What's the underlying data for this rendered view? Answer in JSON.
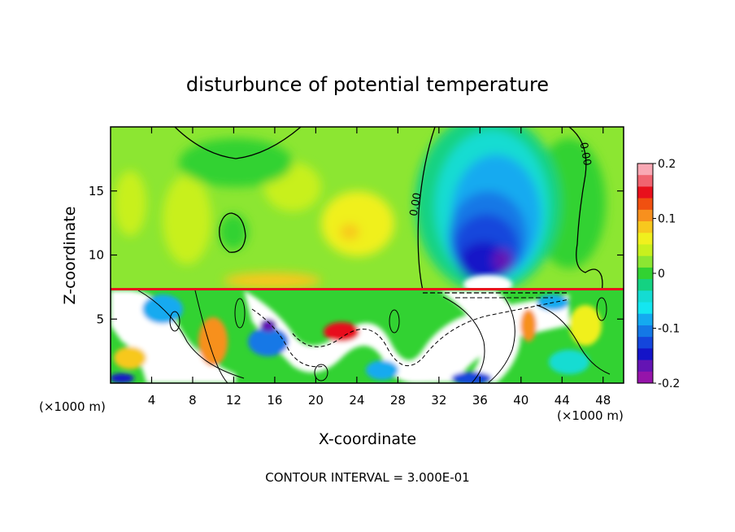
{
  "chart_data": {
    "type": "heatmap",
    "title": "disturbunce of potential temperature",
    "xlabel": "X-coordinate",
    "ylabel": "Z-coordinate",
    "x_unit_left": "(×1000 m)",
    "x_unit_right": "(×1000 m)",
    "xlim": [
      0,
      50
    ],
    "ylim": [
      0,
      20
    ],
    "x_ticks": [
      "4",
      "8",
      "12",
      "16",
      "20",
      "24",
      "28",
      "32",
      "36",
      "40",
      "44",
      "48"
    ],
    "y_ticks": [
      "5",
      "10",
      "15"
    ],
    "contour_labels": [
      "0.00",
      "0.00"
    ],
    "footer": "CONTOUR INTERVAL = 3.000E-01",
    "colorbar": {
      "min": -0.2,
      "max": 0.2,
      "tick_labels": [
        "0.2",
        "0.1",
        "0",
        "-0.1",
        "-0.2"
      ],
      "colors": [
        "#f9a8b4",
        "#f06470",
        "#e8101c",
        "#f05010",
        "#f7901e",
        "#f7c81e",
        "#f0f01e",
        "#c8f01e",
        "#8ce632",
        "#32d232",
        "#14d282",
        "#14dcd2",
        "#14e6f0",
        "#14aaf0",
        "#1478e6",
        "#1446dc",
        "#1414c8",
        "#6414b4",
        "#9614aa"
      ]
    },
    "upper_layer": {
      "z_range": [
        7.3,
        20
      ],
      "background_value": 0.02,
      "cold_anomaly_center_x": 36,
      "cold_anomaly_min": -0.2
    },
    "lower_layer": {
      "z_range": [
        0,
        7.3
      ],
      "description_value_range": [
        -0.2,
        0.2
      ]
    }
  }
}
